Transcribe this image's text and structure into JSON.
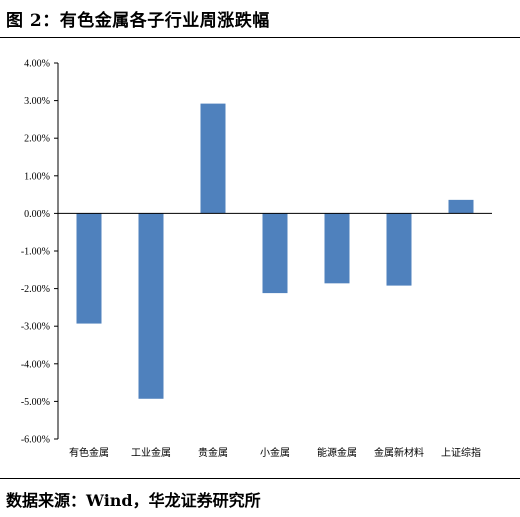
{
  "title": "图 2：有色金属各子行业周涨跌幅",
  "source": "数据来源：Wind，华龙证券研究所",
  "chart_data": {
    "type": "bar",
    "categories": [
      "有色金属",
      "工业金属",
      "贵金属",
      "小金属",
      "能源金属",
      "金属新材料",
      "上证综指"
    ],
    "values": [
      -2.93,
      -4.93,
      2.92,
      -2.12,
      -1.86,
      -1.92,
      0.36
    ],
    "ylim": [
      -6,
      4
    ],
    "yticks": [
      "4.00%",
      "3.00%",
      "2.00%",
      "1.00%",
      "0.00%",
      "-1.00%",
      "-2.00%",
      "-3.00%",
      "-4.00%",
      "-5.00%",
      "-6.00%"
    ],
    "bar_color": "#4f81bd",
    "grid": false
  }
}
